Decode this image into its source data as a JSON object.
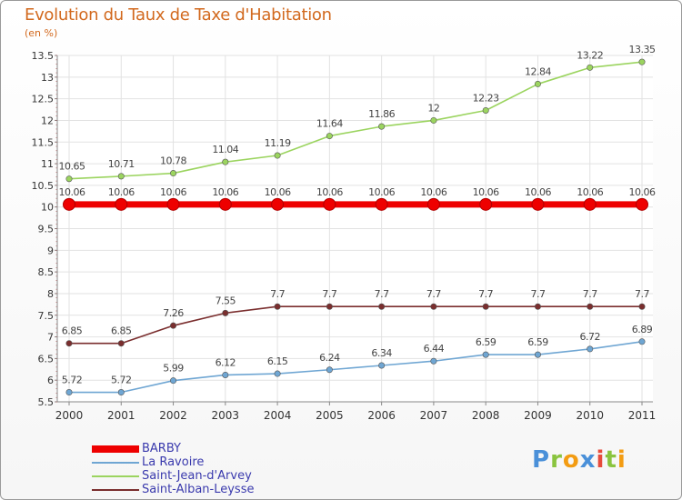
{
  "header": {
    "title": "Evolution du Taux de Taxe d'Habitation",
    "subtitle": "(en %)"
  },
  "brand": {
    "letters": [
      "P",
      "r",
      "o",
      "x",
      "i",
      "t",
      "i"
    ],
    "colors": [
      "#4a90d9",
      "#8ac43f",
      "#f39c12",
      "#4a90d9",
      "#e74c3c",
      "#8ac43f",
      "#f39c12"
    ]
  },
  "chart_data": {
    "type": "line",
    "x": [
      "2000",
      "2001",
      "2002",
      "2003",
      "2004",
      "2005",
      "2006",
      "2007",
      "2008",
      "2009",
      "2010",
      "2011"
    ],
    "ylim": [
      5.5,
      13.5
    ],
    "yticks": [
      "5.5",
      "6",
      "6.5",
      "7",
      "7.5",
      "8",
      "8.5",
      "9",
      "9.5",
      "10",
      "10.5",
      "11",
      "11.5",
      "12",
      "12.5",
      "13",
      "13.5"
    ],
    "grid": true,
    "legend_position": "bottom-left",
    "series": [
      {
        "name": "BARBY",
        "color": "#ee0000",
        "values": [
          10.06,
          10.06,
          10.06,
          10.06,
          10.06,
          10.06,
          10.06,
          10.06,
          10.06,
          10.06,
          10.06,
          10.06
        ],
        "labels": [
          "10.06",
          "10.06",
          "10.06",
          "10.06",
          "10.06",
          "10.06",
          "10.06",
          "10.06",
          "10.06",
          "10.06",
          "10.06",
          "10.06"
        ]
      },
      {
        "name": "La Ravoire",
        "color": "#6fa6d3",
        "values": [
          5.72,
          5.72,
          5.99,
          6.12,
          6.15,
          6.24,
          6.34,
          6.44,
          6.59,
          6.59,
          6.72,
          6.89
        ],
        "labels": [
          "5.72",
          "5.72",
          "5.99",
          "6.12",
          "6.15",
          "6.24",
          "6.34",
          "6.44",
          "6.59",
          "6.59",
          "6.72",
          "6.89"
        ]
      },
      {
        "name": "Saint-Jean-d'Arvey",
        "color": "#9bd45f",
        "values": [
          10.65,
          10.71,
          10.78,
          11.04,
          11.19,
          11.64,
          11.86,
          12,
          12.23,
          12.84,
          13.22,
          13.35
        ],
        "labels": [
          "10.65",
          "10.71",
          "10.78",
          "11.04",
          "11.19",
          "11.64",
          "11.86",
          "12",
          "12.23",
          "12.84",
          "13.22",
          "13.35"
        ]
      },
      {
        "name": "Saint-Alban-Leysse",
        "color": "#7a2e2e",
        "values": [
          6.85,
          6.85,
          7.26,
          7.55,
          7.7,
          7.7,
          7.7,
          7.7,
          7.7,
          7.7,
          7.7,
          7.7
        ],
        "labels": [
          "6.85",
          "6.85",
          "7.26",
          "7.55",
          "7.7",
          "7.7",
          "7.7",
          "7.7",
          "7.7",
          "7.7",
          "7.7",
          "7.7"
        ]
      }
    ]
  }
}
